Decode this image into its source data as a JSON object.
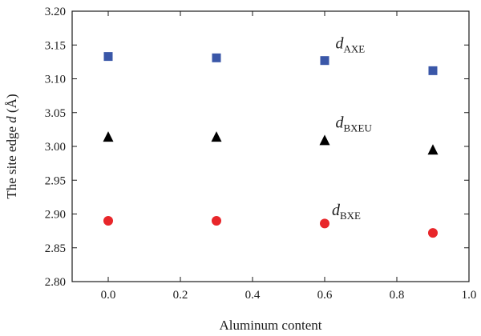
{
  "chart_data": {
    "type": "scatter",
    "title": "",
    "xlabel": "Aluminum content",
    "ylabel": {
      "prefix": "The site edge ",
      "symbol": "d",
      "unit": " (Å)"
    },
    "xlim": [
      -0.1,
      1.0
    ],
    "ylim": [
      2.8,
      3.2
    ],
    "xticks": [
      0.0,
      0.2,
      0.4,
      0.6,
      0.8,
      1.0
    ],
    "xtick_labels": [
      "0.0",
      "0.2",
      "0.4",
      "0.6",
      "0.8",
      "1.0"
    ],
    "yticks": [
      2.8,
      2.85,
      2.9,
      2.95,
      3.0,
      3.05,
      3.1,
      3.15,
      3.2
    ],
    "ytick_labels": [
      "2.80",
      "2.85",
      "2.90",
      "2.95",
      "3.00",
      "3.05",
      "3.10",
      "3.15",
      "3.20"
    ],
    "grid": false,
    "series": [
      {
        "name": "dAXE",
        "label_main": "d",
        "label_sub": "AXE",
        "marker": "square",
        "color": "#3a57a8",
        "x": [
          0.0,
          0.3,
          0.6,
          0.9
        ],
        "y": [
          3.133,
          3.131,
          3.127,
          3.112
        ],
        "label_at": [
          0.63,
          3.145
        ]
      },
      {
        "name": "dBXEU",
        "label_main": "d",
        "label_sub": "BXEU",
        "marker": "triangle",
        "color": "#000000",
        "x": [
          0.0,
          0.3,
          0.6,
          0.9
        ],
        "y": [
          3.014,
          3.014,
          3.009,
          2.995
        ],
        "label_at": [
          0.63,
          3.028
        ]
      },
      {
        "name": "dBXE",
        "label_main": "d",
        "label_sub": "BXE",
        "marker": "circle",
        "color": "#e8262a",
        "x": [
          0.0,
          0.3,
          0.6,
          0.9
        ],
        "y": [
          2.89,
          2.89,
          2.886,
          2.872
        ],
        "label_at": [
          0.62,
          2.898
        ]
      }
    ]
  }
}
